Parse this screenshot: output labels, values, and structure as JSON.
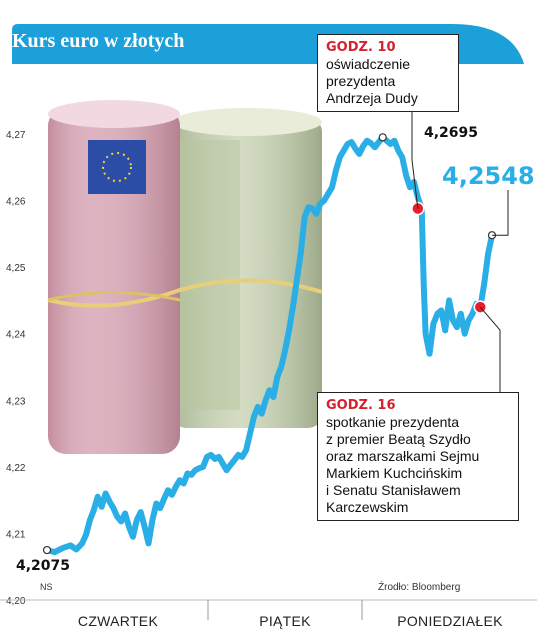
{
  "title": "Kurs euro w złotych",
  "source_label": "Źrodło: Bloomberg",
  "ns_label": "NS",
  "colors": {
    "accent": "#29aee6",
    "header_bg": "#1ba0d9",
    "marker": "#e5202e",
    "line": "#29aee6"
  },
  "chart_data": {
    "type": "line",
    "title": "Kurs euro w złotych",
    "xlabel": "",
    "ylabel": "",
    "ylim": [
      4.2,
      4.27
    ],
    "yticks": [
      "4,27",
      "4,26",
      "4,25",
      "4,24",
      "4,23",
      "4,22",
      "4,21",
      "4,20"
    ],
    "day_labels": [
      "CZWARTEK",
      "PIĄTEK",
      "PONIEDZIAŁEK"
    ],
    "points": [
      [
        0.0,
        4.2075
      ],
      [
        0.04,
        4.2072
      ],
      [
        0.08,
        4.2078
      ],
      [
        0.12,
        4.2082
      ],
      [
        0.15,
        4.2076
      ],
      [
        0.18,
        4.2085
      ],
      [
        0.2,
        4.2098
      ],
      [
        0.22,
        4.212
      ],
      [
        0.24,
        4.2135
      ],
      [
        0.26,
        4.2155
      ],
      [
        0.28,
        4.214
      ],
      [
        0.3,
        4.216
      ],
      [
        0.32,
        4.2148
      ],
      [
        0.34,
        4.2138
      ],
      [
        0.36,
        4.2125
      ],
      [
        0.38,
        4.2118
      ],
      [
        0.4,
        4.213
      ],
      [
        0.42,
        4.211
      ],
      [
        0.44,
        4.2095
      ],
      [
        0.46,
        4.212
      ],
      [
        0.48,
        4.2132
      ],
      [
        0.5,
        4.211
      ],
      [
        0.52,
        4.2085
      ],
      [
        0.54,
        4.212
      ],
      [
        0.56,
        4.2145
      ],
      [
        0.58,
        4.2138
      ],
      [
        0.6,
        4.2152
      ],
      [
        0.62,
        4.2165
      ],
      [
        0.64,
        4.2158
      ],
      [
        0.66,
        4.217
      ],
      [
        0.68,
        4.218
      ],
      [
        0.7,
        4.2175
      ],
      [
        0.72,
        4.219
      ],
      [
        0.74,
        4.2188
      ],
      [
        0.76,
        4.2195
      ],
      [
        0.78,
        4.2198
      ],
      [
        0.8,
        4.22
      ],
      [
        0.82,
        4.2215
      ],
      [
        0.84,
        4.2218
      ],
      [
        0.86,
        4.2212
      ],
      [
        0.88,
        4.2215
      ],
      [
        0.9,
        4.2205
      ],
      [
        0.92,
        4.2195
      ],
      [
        0.94,
        4.2203
      ],
      [
        0.96,
        4.221
      ],
      [
        0.98,
        4.2218
      ],
      [
        1.0,
        4.2215
      ],
      [
        1.02,
        4.2225
      ],
      [
        1.04,
        4.225
      ],
      [
        1.06,
        4.2275
      ],
      [
        1.08,
        4.229
      ],
      [
        1.1,
        4.228
      ],
      [
        1.12,
        4.23
      ],
      [
        1.14,
        4.2315
      ],
      [
        1.16,
        4.2305
      ],
      [
        1.18,
        4.2335
      ],
      [
        1.2,
        4.235
      ],
      [
        1.22,
        4.2375
      ],
      [
        1.24,
        4.2405
      ],
      [
        1.26,
        4.244
      ],
      [
        1.28,
        4.248
      ],
      [
        1.3,
        4.252
      ],
      [
        1.32,
        4.2575
      ],
      [
        1.34,
        4.259
      ],
      [
        1.36,
        4.2588
      ],
      [
        1.38,
        4.258
      ],
      [
        1.4,
        4.2595
      ],
      [
        1.42,
        4.26
      ],
      [
        1.44,
        4.261
      ],
      [
        1.46,
        4.262
      ],
      [
        1.48,
        4.2645
      ],
      [
        1.5,
        4.2665
      ],
      [
        1.52,
        4.2675
      ],
      [
        1.54,
        4.2685
      ],
      [
        1.56,
        4.2688
      ],
      [
        1.58,
        4.2678
      ],
      [
        1.6,
        4.267
      ],
      [
        1.62,
        4.2682
      ],
      [
        1.64,
        4.269
      ],
      [
        1.66,
        4.2686
      ],
      [
        1.68,
        4.268
      ],
      [
        1.7,
        4.2688
      ],
      [
        1.72,
        4.2695
      ],
      [
        1.74,
        4.269
      ],
      [
        1.76,
        4.2685
      ],
      [
        1.78,
        4.269
      ],
      [
        1.8,
        4.2675
      ],
      [
        1.82,
        4.2665
      ],
      [
        1.84,
        4.2638
      ],
      [
        1.86,
        4.262
      ],
      [
        1.88,
        4.2628
      ],
      [
        1.9,
        4.2605
      ],
      [
        1.92,
        4.2588
      ],
      [
        1.93,
        4.2475
      ],
      [
        1.94,
        4.24
      ],
      [
        1.96,
        4.237
      ],
      [
        1.98,
        4.2415
      ],
      [
        2.0,
        4.243
      ],
      [
        2.02,
        4.2435
      ],
      [
        2.04,
        4.2405
      ],
      [
        2.06,
        4.245
      ],
      [
        2.08,
        4.242
      ],
      [
        2.1,
        4.241
      ],
      [
        2.12,
        4.243
      ],
      [
        2.14,
        4.24
      ],
      [
        2.16,
        4.242
      ],
      [
        2.18,
        4.243
      ],
      [
        2.2,
        4.2445
      ],
      [
        2.22,
        4.244
      ],
      [
        2.24,
        4.2475
      ],
      [
        2.26,
        4.252
      ],
      [
        2.28,
        4.2548
      ]
    ],
    "value_labels": {
      "start": "4,2075",
      "max": "4,2695",
      "last": "4,2548"
    },
    "annotations": [
      {
        "time": "GODZ. 10",
        "text": [
          "oświadczenie",
          "prezydenta",
          "Andrzeja Dudy"
        ],
        "x": 1.9,
        "y": 4.2588
      },
      {
        "time": "GODZ. 16",
        "text": [
          "spotkanie prezydenta",
          "z premier Beatą Szydło",
          "oraz marszałkami Sejmu",
          "Markiem Kuchcińskim",
          "i Senatu Stanisławem",
          "Karczewskim"
        ],
        "x": 2.22,
        "y": 4.244
      }
    ]
  }
}
